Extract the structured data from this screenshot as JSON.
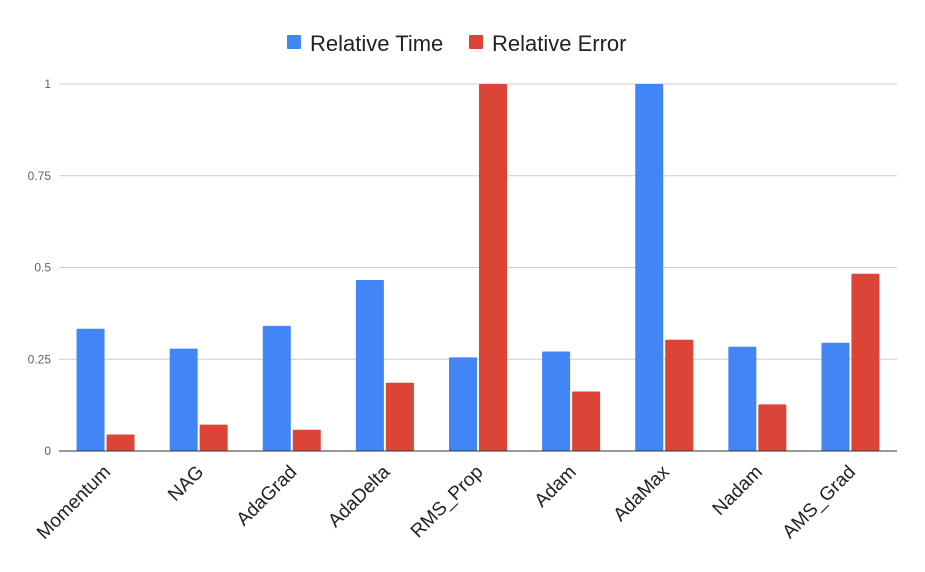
{
  "chart_data": {
    "type": "bar",
    "categories": [
      "Momentum",
      "NAG",
      "AdaGrad",
      "AdaDelta",
      "RMS_Prop",
      "Adam",
      "AdaMax",
      "Nadam",
      "AMS_Grad"
    ],
    "series": [
      {
        "name": "Relative Time",
        "color": "#4285f4",
        "values": [
          0.333,
          0.279,
          0.341,
          0.466,
          0.255,
          0.271,
          1.0,
          0.284,
          0.295
        ]
      },
      {
        "name": "Relative Error",
        "color": "#db4437",
        "values": [
          0.045,
          0.072,
          0.058,
          0.186,
          1.0,
          0.162,
          0.303,
          0.127,
          0.483
        ]
      }
    ],
    "title": "",
    "xlabel": "",
    "ylabel": "",
    "ylim": [
      0,
      1
    ],
    "yticks": [
      0,
      0.25,
      0.5,
      0.75,
      1
    ],
    "ytick_labels": [
      "0",
      "0.25",
      "0.5",
      "0.75",
      "1"
    ],
    "grid": true,
    "legend_position": "top-center"
  }
}
